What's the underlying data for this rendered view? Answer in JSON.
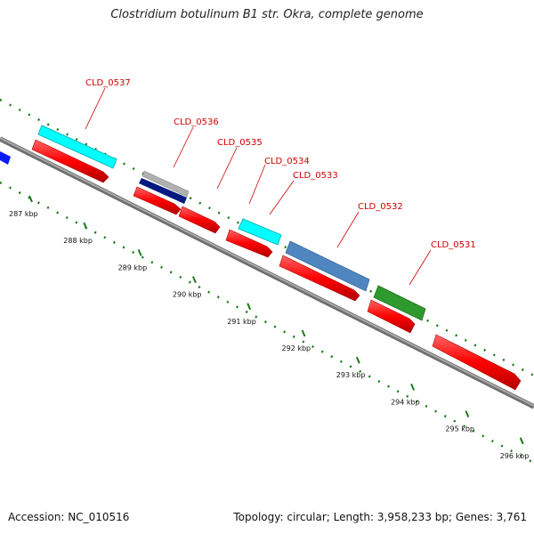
{
  "title": "Clostridium botulinum B1 str. Okra, complete genome",
  "footer": {
    "accession": "Accession: NC_010516",
    "summary": "Topology: circular; Length: 3,958,233 bp; Genes: 3,761"
  },
  "axis": {
    "tick_labels": [
      "287 kbp",
      "288 kbp",
      "289 kbp",
      "290 kbp",
      "291 kbp",
      "292 kbp",
      "293 kbp",
      "294 kbp",
      "295 kbp",
      "296 kbp"
    ]
  },
  "gene_labels": [
    "CLD_0537",
    "CLD_0536",
    "CLD_0535",
    "CLD_0534",
    "CLD_0533",
    "CLD_0532",
    "CLD_0531"
  ],
  "colors": {
    "backbone": "#8a8a8a",
    "cds": "#ff0000",
    "label": "#cc0000",
    "ticks": "#1a7a1a",
    "cyan": "#00ffff",
    "navy": "#001a80",
    "gray": "#b0b0b0",
    "steelblue": "#4f86c0",
    "green": "#2e9a2e",
    "blue": "#0a1aff"
  }
}
